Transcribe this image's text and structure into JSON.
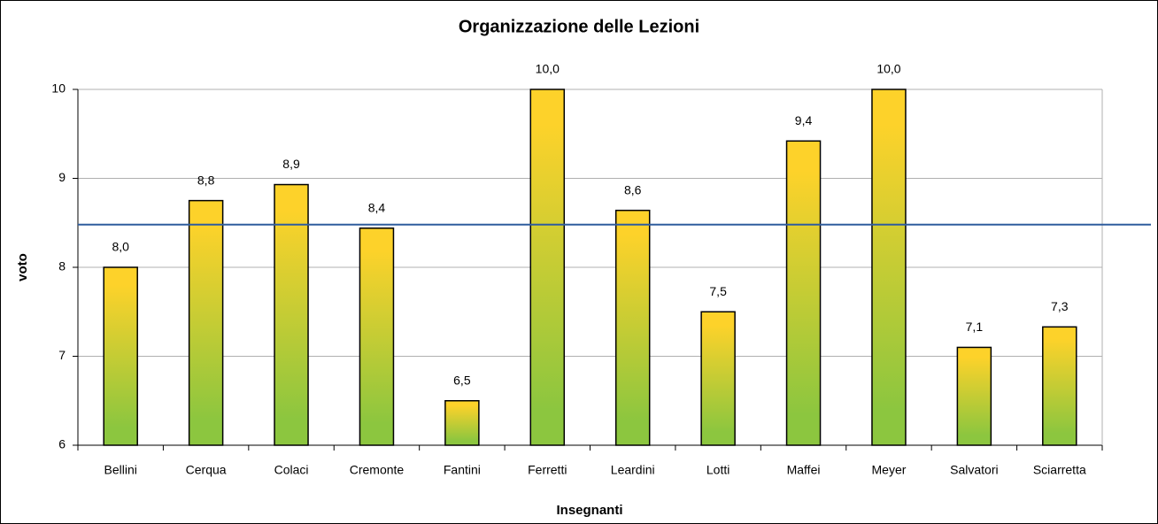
{
  "chart_data": {
    "type": "bar",
    "title": "Organizzazione delle Lezioni",
    "x_label": "Insegnanti",
    "y_label": "voto",
    "categories": [
      "Bellini",
      "Cerqua",
      "Colaci",
      "Cremonte",
      "Fantini",
      "Ferretti",
      "Leardini",
      "Lotti",
      "Maffei",
      "Meyer",
      "Salvatori",
      "Sciarretta"
    ],
    "values": [
      8.0,
      8.75,
      8.93,
      8.44,
      6.5,
      10.0,
      8.64,
      7.5,
      9.42,
      10.0,
      7.1,
      7.33
    ],
    "value_labels": [
      "8,0",
      "8,8",
      "8,9",
      "8,4",
      "6,5",
      "10,0",
      "8,6",
      "7,5",
      "9,4",
      "10,0",
      "7,1",
      "7,3"
    ],
    "color_top": "#fdd22a",
    "color_bottom": "#8cc63f",
    "reference_line": 8.48,
    "reference_color": "#2f5d9e",
    "ylim": [
      6,
      10
    ],
    "yticks": [
      6,
      7,
      8,
      9,
      10
    ],
    "grid": true
  }
}
